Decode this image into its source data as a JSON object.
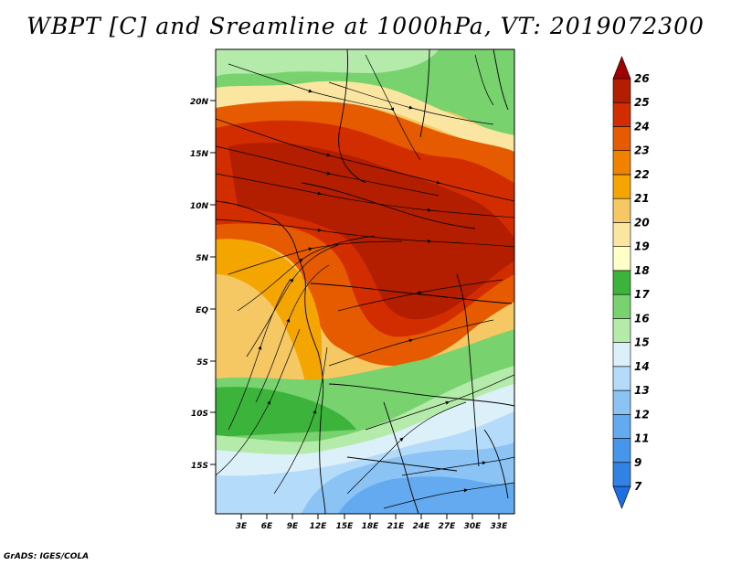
{
  "title": "WBPT [C] and Sreamline at 1000hPa, VT: 2019072300",
  "footer": "GrADS: IGES/COLA",
  "map": {
    "lat_labels": [
      "20N",
      "15N",
      "10N",
      "5N",
      "EQ",
      "5S",
      "10S",
      "15S"
    ],
    "lon_labels": [
      "3E",
      "6E",
      "9E",
      "12E",
      "15E",
      "18E",
      "21E",
      "24E",
      "27E",
      "30E",
      "33E"
    ]
  },
  "colorbar": {
    "levels": [
      "7",
      "9",
      "11",
      "12",
      "13",
      "14",
      "15",
      "16",
      "17",
      "18",
      "19",
      "20",
      "21",
      "22",
      "23",
      "24",
      "25",
      "26"
    ],
    "colors": [
      "#1e6ee6",
      "#3282e6",
      "#4696eb",
      "#64aaf0",
      "#8cc3f5",
      "#b4dcfa",
      "#dcf0fa",
      "#b4ebaa",
      "#78d26e",
      "#3cb43c",
      "#ffffc8",
      "#fae6a0",
      "#f5c864",
      "#f5a500",
      "#f08200",
      "#e65a00",
      "#d22d00",
      "#b41e00",
      "#a00000"
    ]
  }
}
